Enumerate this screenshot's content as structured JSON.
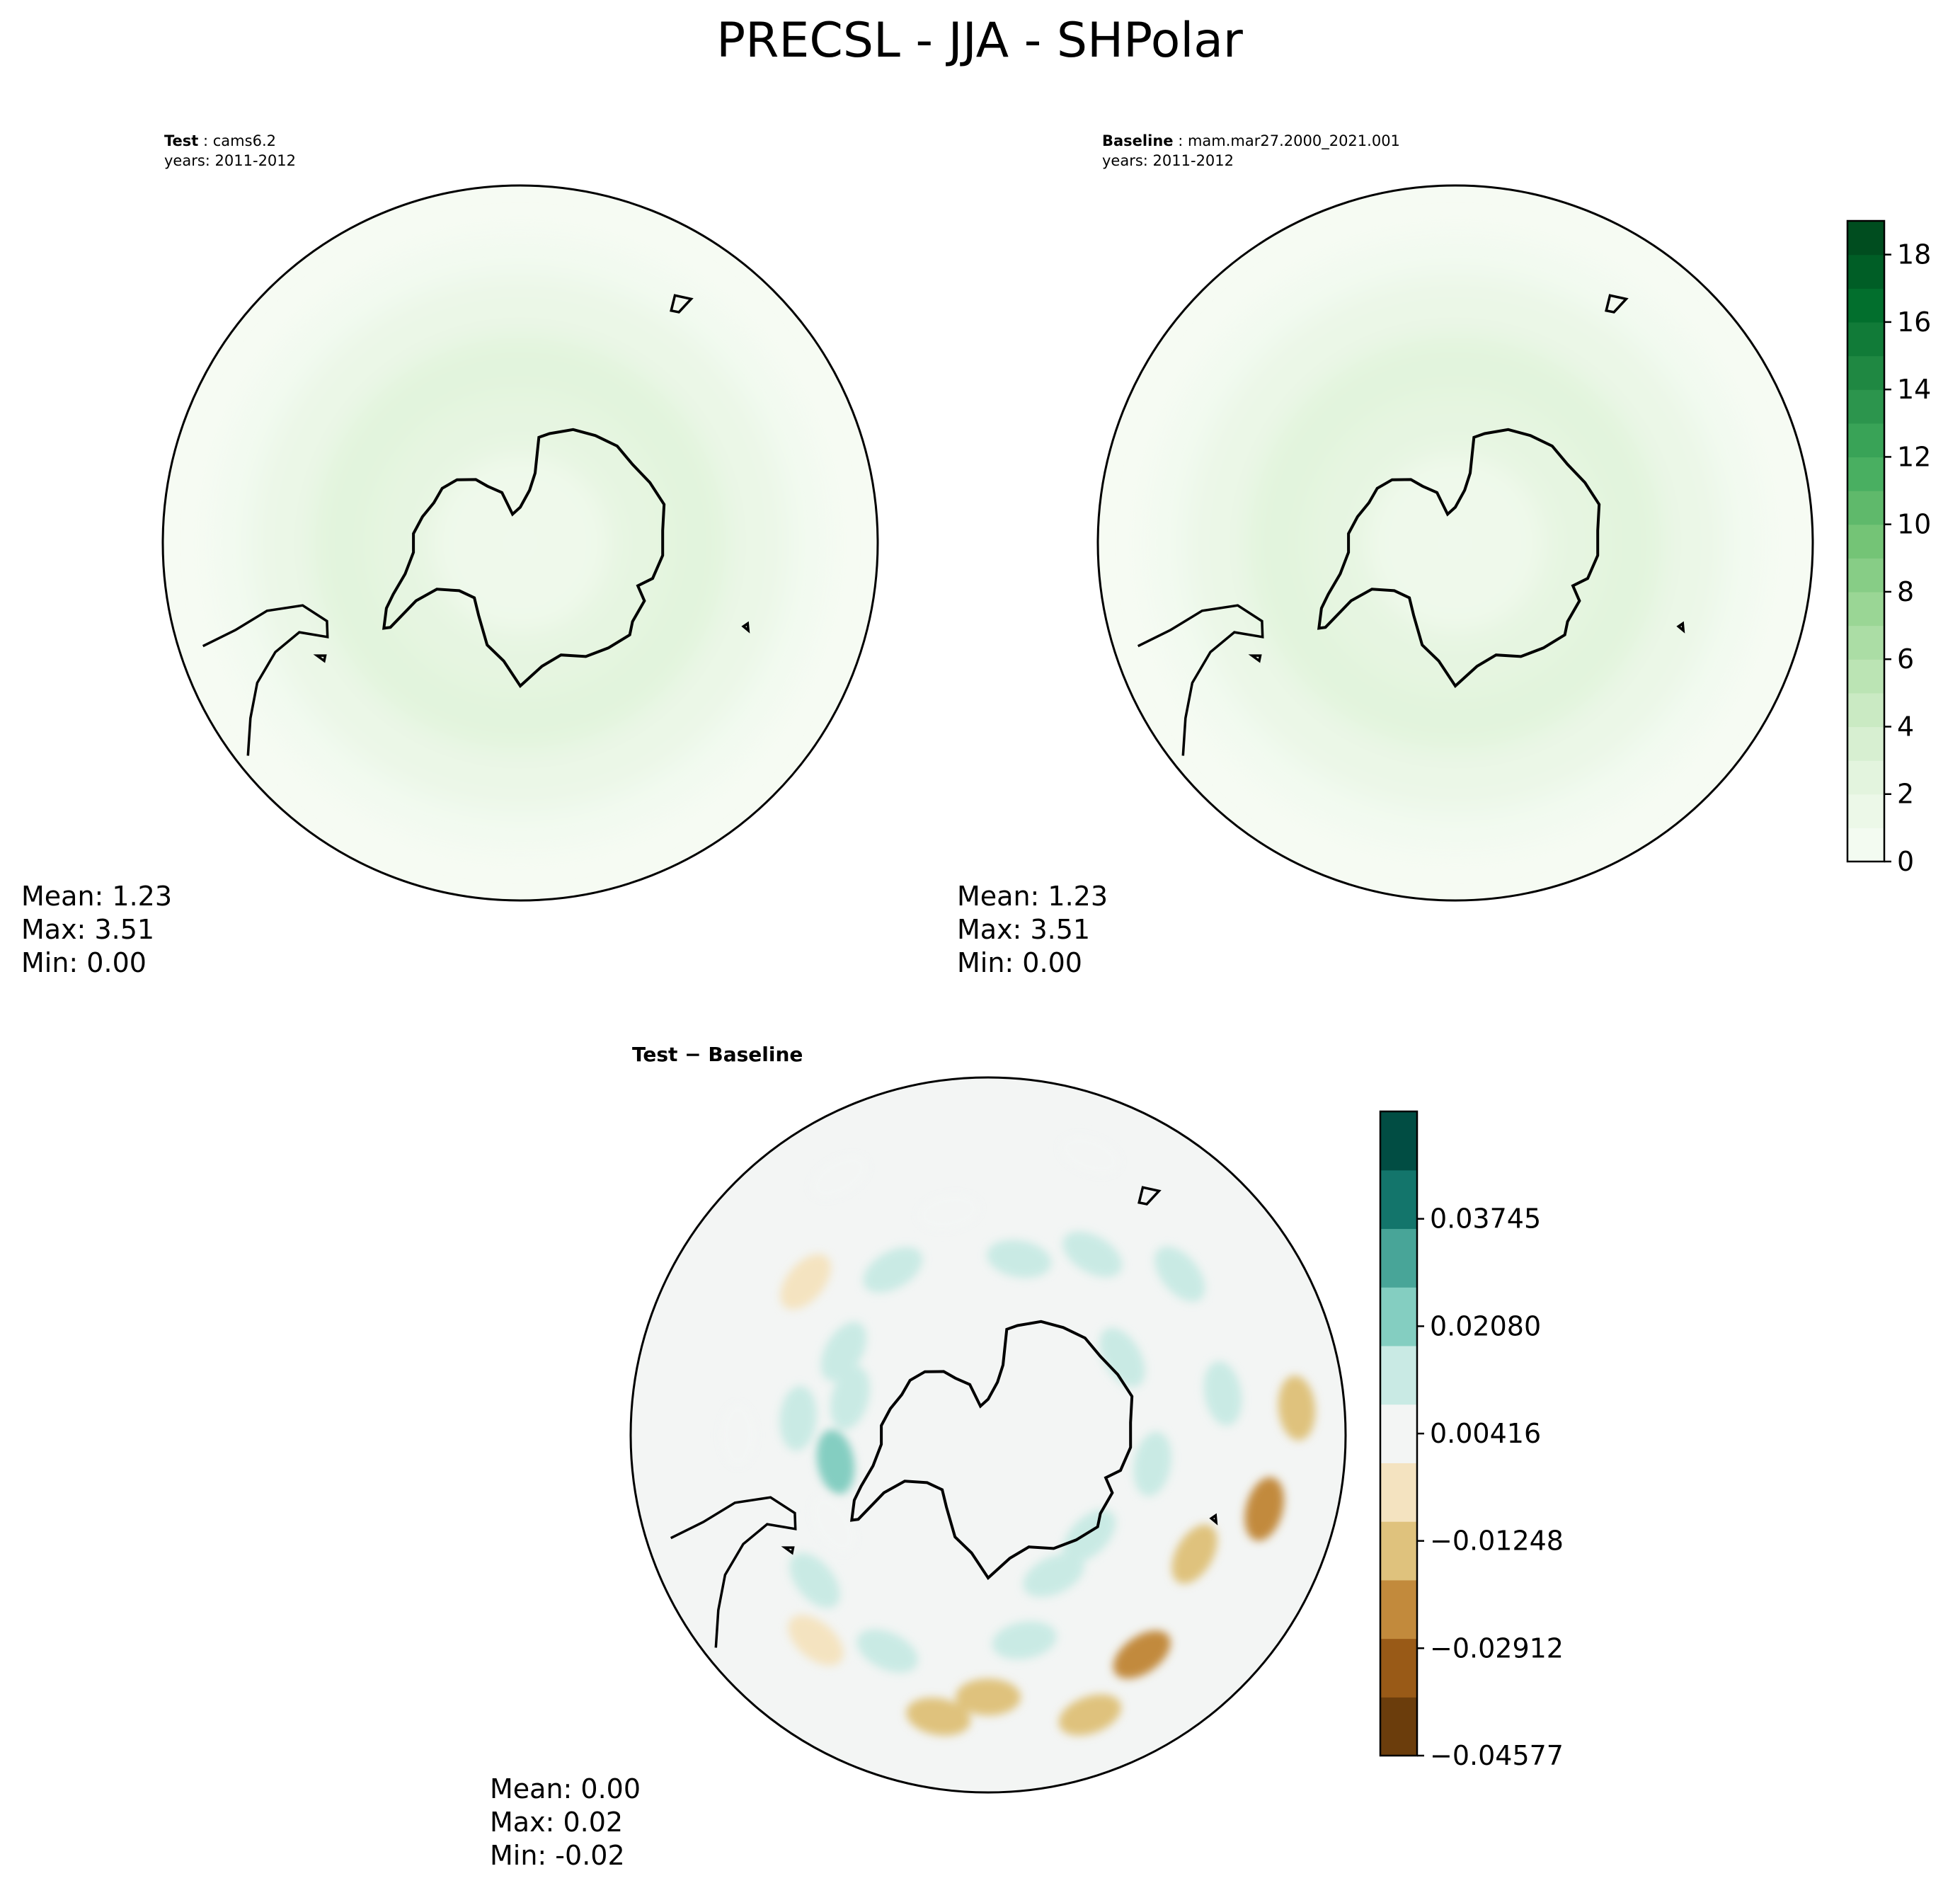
{
  "figure": {
    "title": "PRECSL - JJA - SHPolar"
  },
  "chart_data": [
    {
      "type": "heatmap",
      "panel": "test",
      "label_bold": "Test",
      "label_sep": " : ",
      "case": "cams6.2",
      "years": "years: 2011-2012",
      "projection": "south-polar-stereographic",
      "stats": {
        "mean": "Mean:  1.23",
        "max": "Max:  3.51",
        "min": "Min:  0.00"
      },
      "colormap": "Greens",
      "field_rings": [
        {
          "lat": -90,
          "value": 0.4
        },
        {
          "lat": -75,
          "value": 1.1
        },
        {
          "lat": -65,
          "value": 2.3
        },
        {
          "lat": -55,
          "value": 2.6
        },
        {
          "lat": -45,
          "value": 1.6
        },
        {
          "lat": -38,
          "value": 0.6
        }
      ]
    },
    {
      "type": "heatmap",
      "panel": "baseline",
      "label_bold": "Baseline",
      "label_sep": " : ",
      "case": "mam.mar27.2000_2021.001",
      "years": "years: 2011-2012",
      "projection": "south-polar-stereographic",
      "stats": {
        "mean": "Mean:  1.23",
        "max": "Max:  3.51",
        "min": "Min:  0.00"
      },
      "colormap": "Greens",
      "colorbar": {
        "range": [
          0,
          19
        ],
        "levels": 19,
        "ticks": [
          0,
          2,
          4,
          6,
          8,
          10,
          12,
          14,
          16,
          18
        ],
        "tick_labels": [
          "0",
          "2",
          "4",
          "6",
          "8",
          "10",
          "12",
          "14",
          "16",
          "18"
        ]
      },
      "field_rings": [
        {
          "lat": -90,
          "value": 0.4
        },
        {
          "lat": -75,
          "value": 1.1
        },
        {
          "lat": -65,
          "value": 2.3
        },
        {
          "lat": -55,
          "value": 2.6
        },
        {
          "lat": -45,
          "value": 1.6
        },
        {
          "lat": -38,
          "value": 0.6
        }
      ]
    },
    {
      "type": "heatmap",
      "panel": "difference",
      "title": "Test − Baseline",
      "projection": "south-polar-stereographic",
      "stats": {
        "mean": "Mean:  0.00",
        "max": "Max:  0.02",
        "min": "Min: -0.02"
      },
      "colormap": "BrBG",
      "colorbar": {
        "range": [
          -0.04577,
          0.0541
        ],
        "tick_values": [
          0.03745,
          0.0208,
          0.00416,
          -0.01248,
          -0.02912,
          -0.04577
        ],
        "tick_labels": [
          "0.03745",
          "0.02080",
          "0.00416",
          "−0.01248",
          "−0.02912",
          "−0.04577"
        ],
        "level_colors": [
          "#6b3d0c",
          "#995a17",
          "#c28a3c",
          "#dfc27d",
          "#f4e3c0",
          "#f3f5f4",
          "#c9eae4",
          "#84cec1",
          "#48a598",
          "#13756b",
          "#014d43"
        ]
      },
      "anomalies": [
        {
          "lat": -40,
          "lon": 20,
          "value": -0.012
        },
        {
          "lat": -45,
          "lon": 35,
          "value": -0.02
        },
        {
          "lat": -50,
          "lon": 60,
          "value": -0.012
        },
        {
          "lat": -42,
          "lon": 75,
          "value": -0.02
        },
        {
          "lat": -38,
          "lon": 95,
          "value": -0.01
        },
        {
          "lat": -50,
          "lon": 100,
          "value": 0.01
        },
        {
          "lat": -48,
          "lon": 130,
          "value": 0.01
        },
        {
          "lat": -55,
          "lon": 150,
          "value": 0.015
        },
        {
          "lat": -60,
          "lon": 170,
          "value": 0.01
        },
        {
          "lat": -52,
          "lon": -170,
          "value": 0.008
        },
        {
          "lat": -58,
          "lon": -150,
          "value": 0.01
        },
        {
          "lat": -50,
          "lon": -130,
          "value": -0.008
        },
        {
          "lat": -62,
          "lon": -120,
          "value": 0.012
        },
        {
          "lat": -66,
          "lon": -105,
          "value": 0.015
        },
        {
          "lat": -58,
          "lon": -95,
          "value": 0.01
        },
        {
          "lat": -48,
          "lon": -90,
          "value": 0.008
        },
        {
          "lat": -64,
          "lon": -80,
          "value": 0.02
        },
        {
          "lat": -60,
          "lon": -60,
          "value": 0.008
        },
        {
          "lat": -52,
          "lon": -50,
          "value": 0.012
        },
        {
          "lat": -45,
          "lon": -40,
          "value": -0.008
        },
        {
          "lat": -50,
          "lon": -25,
          "value": 0.01
        },
        {
          "lat": -42,
          "lon": -10,
          "value": -0.01
        },
        {
          "lat": -46,
          "lon": 0,
          "value": -0.015
        },
        {
          "lat": -55,
          "lon": 10,
          "value": 0.01
        },
        {
          "lat": -64,
          "lon": 25,
          "value": 0.01
        },
        {
          "lat": -66,
          "lon": 45,
          "value": 0.012
        },
        {
          "lat": -62,
          "lon": 80,
          "value": 0.015
        },
        {
          "lat": -64,
          "lon": 120,
          "value": 0.012
        },
        {
          "lat": -40,
          "lon": -150,
          "value": 0.008
        },
        {
          "lat": -40,
          "lon": 160,
          "value": 0.006
        }
      ]
    }
  ]
}
